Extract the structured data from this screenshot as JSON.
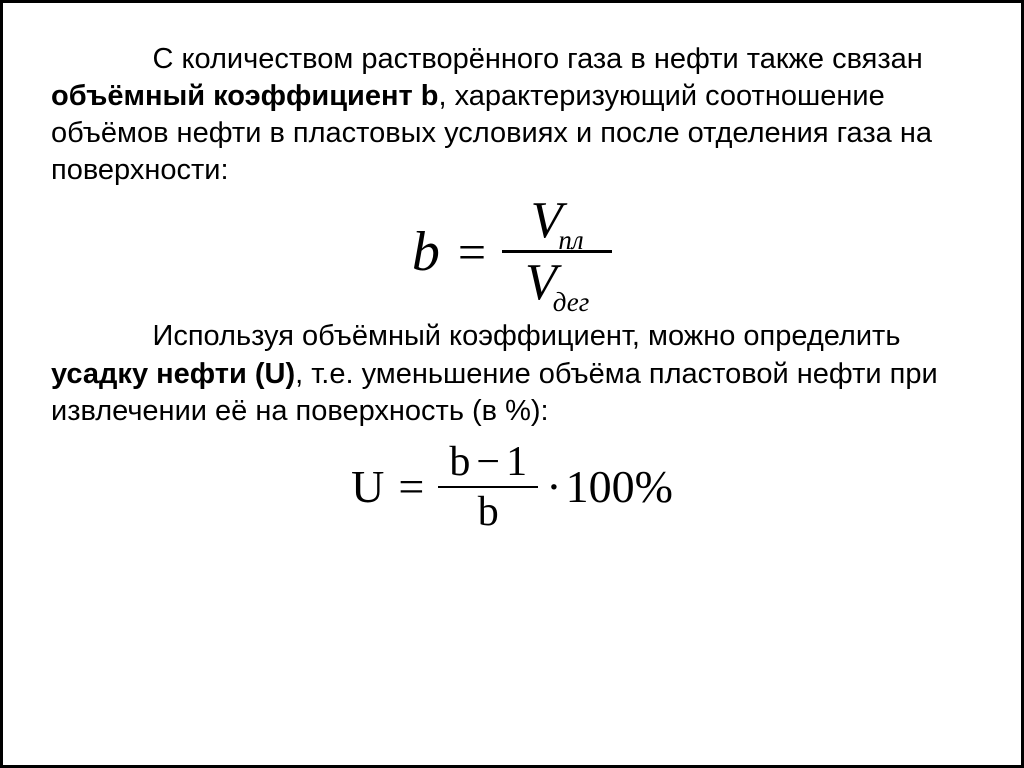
{
  "para1": {
    "t1": "С количеством растворённого газа в нефти также связан ",
    "bold1": "объёмный коэффициент b",
    "t2": ", характеризующий соотношение объёмов нефти в пластовых условиях и после отделения газа на поверхности:"
  },
  "formula1": {
    "lhs": "b",
    "eq": "=",
    "num_var": "V",
    "num_sub": "пл",
    "den_var": "V",
    "den_sub": "дег"
  },
  "para2": {
    "t1": "Используя объёмный коэффициент, можно определить ",
    "bold1": "усадку нефти (U)",
    "t2": ", т.е. уменьшение объёма пластовой нефти при извлечении её на поверхность (в %):"
  },
  "formula2": {
    "lhs": "U",
    "eq": "=",
    "num_a": "b",
    "num_minus": "−",
    "num_b": "1",
    "den": "b",
    "dot": "·",
    "tail": "100%"
  },
  "colors": {
    "text": "#000000",
    "background": "#ffffff",
    "border": "#000000"
  },
  "fontsizes": {
    "body_pt": 29,
    "formula1_main_pt": 56,
    "formula1_sub_pt": 27,
    "formula2_main_pt": 46
  }
}
